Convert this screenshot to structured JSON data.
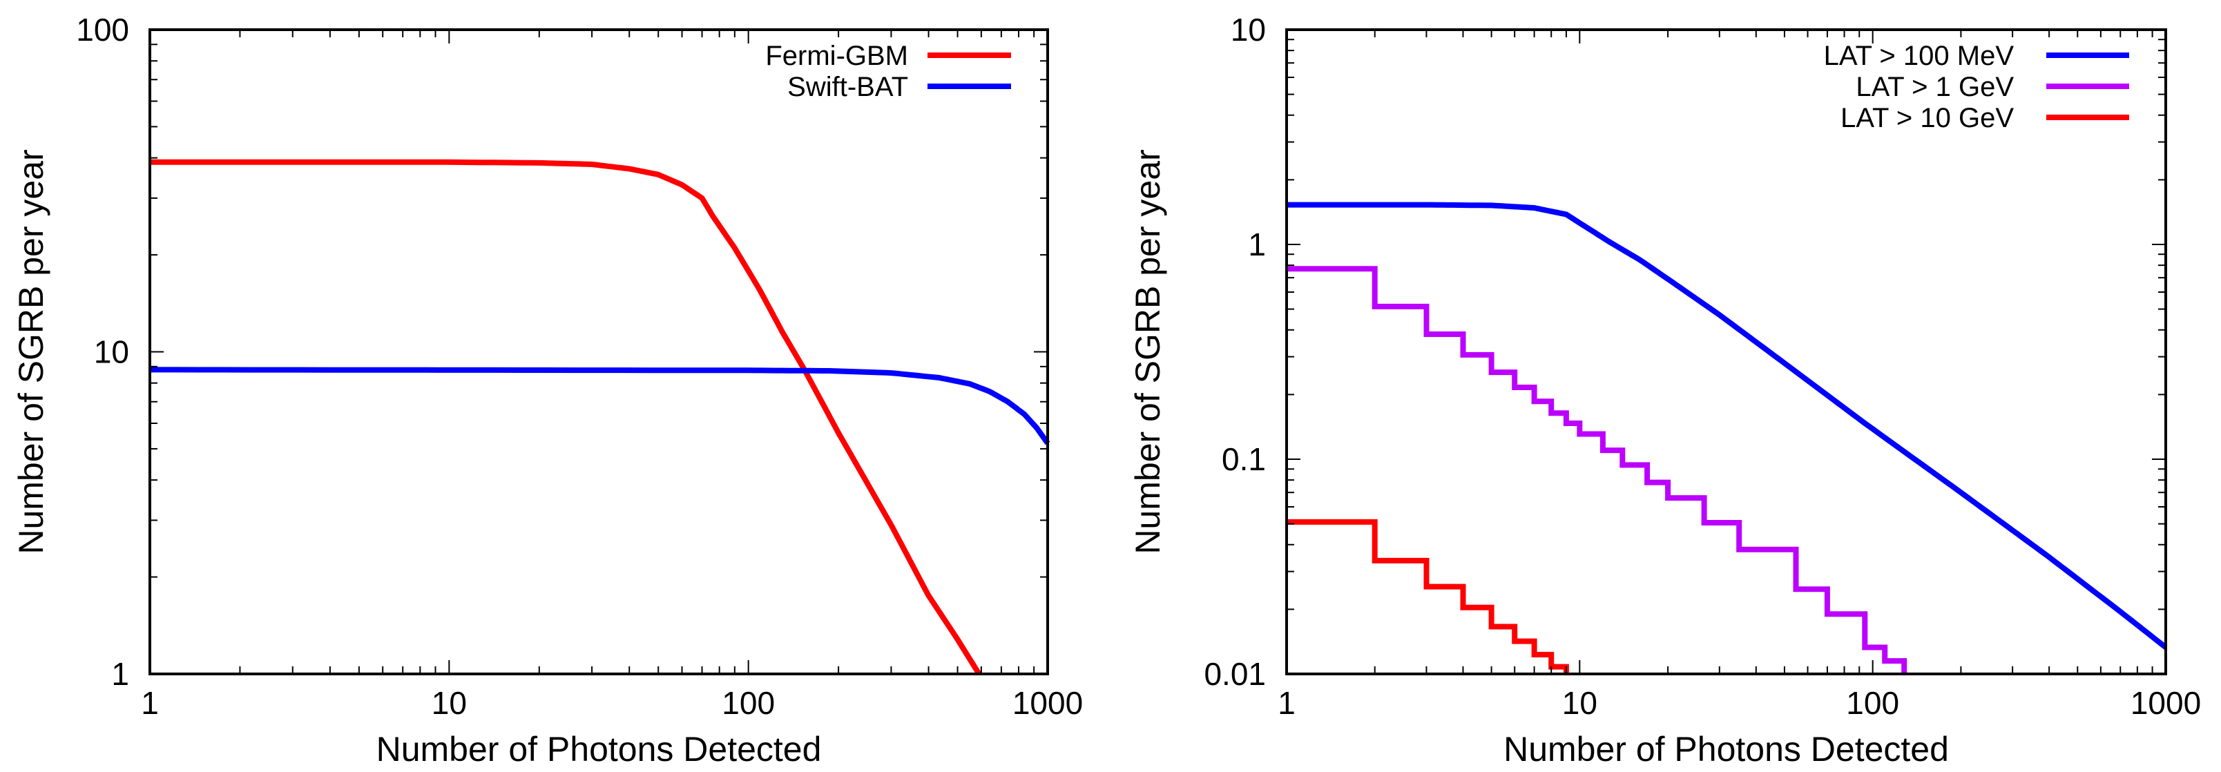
{
  "chart_data": [
    {
      "type": "line",
      "title": "",
      "xlabel": "Number of Photons Detected",
      "ylabel": "Number of SGRB per year",
      "xscale": "log",
      "yscale": "log",
      "xlim": [
        1,
        1000
      ],
      "ylim": [
        1,
        100
      ],
      "xticks": [
        1,
        10,
        100,
        1000
      ],
      "xtick_labels": [
        "1",
        "10",
        "100",
        "1000"
      ],
      "yticks": [
        1,
        10,
        100
      ],
      "ytick_labels": [
        "1",
        "10",
        "100"
      ],
      "grid": false,
      "legend_position": "top-right",
      "series": [
        {
          "name": "Fermi-GBM",
          "color": "#ff0000",
          "step": false,
          "x": [
            1,
            5,
            10,
            20,
            30,
            40,
            50,
            60,
            70,
            76,
            90,
            109,
            130,
            155,
            200,
            300,
            400,
            500,
            590
          ],
          "y": [
            38.8,
            38.8,
            38.8,
            38.6,
            38.2,
            37.0,
            35.5,
            33.0,
            30.0,
            26.4,
            21.0,
            15.6,
            11.5,
            8.7,
            5.6,
            2.9,
            1.75,
            1.28,
            1.0
          ]
        },
        {
          "name": "Swift-BAT",
          "color": "#0000ff",
          "step": false,
          "x": [
            1,
            10,
            100,
            186,
            300,
            434,
            550,
            640,
            736,
            836,
            920,
            1000
          ],
          "y": [
            8.8,
            8.78,
            8.76,
            8.73,
            8.6,
            8.31,
            7.95,
            7.53,
            7.0,
            6.4,
            5.8,
            5.2
          ]
        }
      ]
    },
    {
      "type": "line",
      "title": "",
      "xlabel": "Number of Photons Detected",
      "ylabel": "Number of SGRB per year",
      "xscale": "log",
      "yscale": "log",
      "xlim": [
        1,
        1000
      ],
      "ylim": [
        0.01,
        10
      ],
      "xticks": [
        1,
        10,
        100,
        1000
      ],
      "xtick_labels": [
        "1",
        "10",
        "100",
        "1000"
      ],
      "yticks": [
        0.01,
        0.1,
        1,
        10
      ],
      "ytick_labels": [
        "0.01",
        "0.1",
        "1",
        "10"
      ],
      "grid": false,
      "legend_position": "top-right",
      "series": [
        {
          "name": "LAT > 100 MeV",
          "color": "#0000ff",
          "step": false,
          "x": [
            1,
            3,
            5,
            7,
            9,
            12.6,
            16,
            20,
            30,
            50,
            94,
            200,
            400,
            700,
            1000
          ],
          "y": [
            1.53,
            1.53,
            1.52,
            1.48,
            1.38,
            1.03,
            0.85,
            0.69,
            0.47,
            0.28,
            0.147,
            0.07,
            0.035,
            0.0195,
            0.0133
          ]
        },
        {
          "name": "LAT > 1 GeV",
          "color": "#bb00ff",
          "step": true,
          "x": [
            1,
            2,
            3,
            4,
            5,
            6,
            7,
            8,
            9,
            10,
            12,
            14,
            17,
            20,
            26.6,
            35,
            54.7,
            70,
            94,
            110,
            128
          ],
          "y": [
            0.77,
            0.514,
            0.382,
            0.306,
            0.254,
            0.216,
            0.186,
            0.164,
            0.147,
            0.131,
            0.11,
            0.094,
            0.078,
            0.066,
            0.0506,
            0.038,
            0.0248,
            0.019,
            0.0133,
            0.0115,
            0.01
          ]
        },
        {
          "name": "LAT > 10 GeV",
          "color": "#ff0000",
          "step": true,
          "x": [
            1,
            2,
            3,
            4,
            5,
            6,
            7,
            8,
            9
          ],
          "y": [
            0.051,
            0.0337,
            0.0255,
            0.0204,
            0.0166,
            0.0142,
            0.0123,
            0.0108,
            0.01
          ]
        }
      ]
    }
  ]
}
